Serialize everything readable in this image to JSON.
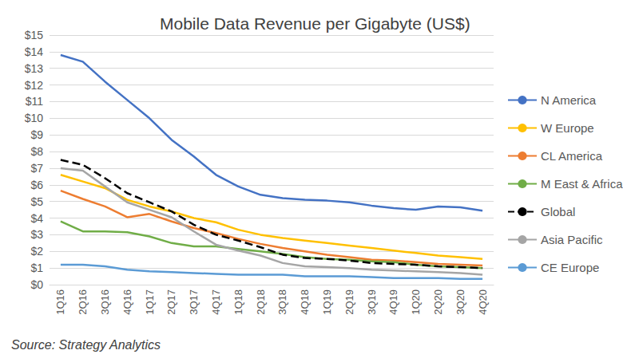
{
  "chart_data": {
    "type": "line",
    "title": "Mobile Data Revenue per Gigabyte (US$)",
    "annotation": "Source: Strategy Analytics",
    "categories": [
      "1Q16",
      "2Q16",
      "3Q16",
      "4Q16",
      "1Q17",
      "2Q17",
      "3Q17",
      "4Q17",
      "1Q18",
      "2Q18",
      "3Q18",
      "4Q18",
      "1Q19",
      "2Q19",
      "3Q19",
      "4Q19",
      "1Q20",
      "2Q20",
      "3Q20",
      "4Q20"
    ],
    "series": [
      {
        "name": "N America",
        "color": "#4472C4",
        "line_style": "solid",
        "values": [
          13.8,
          13.4,
          12.2,
          11.1,
          10.0,
          8.7,
          7.7,
          6.6,
          5.9,
          5.4,
          5.2,
          5.1,
          5.05,
          4.95,
          4.75,
          4.6,
          4.5,
          4.7,
          4.65,
          4.45
        ]
      },
      {
        "name": "W Europe",
        "color": "#FFC000",
        "line_style": "solid",
        "values": [
          6.6,
          6.2,
          5.8,
          5.1,
          4.7,
          4.4,
          4.0,
          3.75,
          3.3,
          3.0,
          2.8,
          2.65,
          2.5,
          2.35,
          2.2,
          2.05,
          1.9,
          1.75,
          1.65,
          1.55
        ]
      },
      {
        "name": "CL America",
        "color": "#ED7D31",
        "line_style": "solid",
        "values": [
          5.65,
          5.15,
          4.7,
          4.05,
          4.25,
          3.8,
          3.4,
          3.1,
          2.75,
          2.45,
          2.2,
          2.0,
          1.8,
          1.65,
          1.5,
          1.45,
          1.35,
          1.25,
          1.2,
          1.15
        ]
      },
      {
        "name": "M East & Africa",
        "color": "#70AD47",
        "line_style": "solid",
        "values": [
          3.8,
          3.2,
          3.2,
          3.15,
          2.9,
          2.5,
          2.3,
          2.3,
          2.15,
          2.0,
          1.85,
          1.65,
          1.55,
          1.5,
          1.4,
          1.35,
          1.2,
          1.1,
          1.05,
          1.0
        ]
      },
      {
        "name": "Global",
        "color": "#000000",
        "line_style": "dashed",
        "values": [
          7.5,
          7.2,
          6.4,
          5.5,
          4.95,
          4.4,
          3.6,
          3.0,
          2.65,
          2.25,
          1.8,
          1.6,
          1.55,
          1.45,
          1.3,
          1.25,
          1.2,
          1.1,
          1.05,
          1.0
        ]
      },
      {
        "name": "Asia Pacific",
        "color": "#A5A5A5",
        "line_style": "solid",
        "values": [
          7.0,
          6.85,
          5.9,
          4.95,
          4.5,
          4.05,
          3.2,
          2.4,
          2.05,
          1.75,
          1.3,
          1.1,
          1.05,
          1.0,
          0.9,
          0.85,
          0.8,
          0.75,
          0.7,
          0.6
        ]
      },
      {
        "name": "CE Europe",
        "color": "#5B9BD5",
        "line_style": "solid",
        "values": [
          1.2,
          1.2,
          1.1,
          0.9,
          0.8,
          0.75,
          0.7,
          0.65,
          0.6,
          0.6,
          0.6,
          0.5,
          0.5,
          0.5,
          0.45,
          0.4,
          0.4,
          0.4,
          0.35,
          0.35
        ]
      }
    ],
    "ylim": [
      0,
      15
    ],
    "yticks": [
      {
        "value": 0,
        "label": "$0"
      },
      {
        "value": 1,
        "label": "$1"
      },
      {
        "value": 2,
        "label": "$2"
      },
      {
        "value": 3,
        "label": "$3"
      },
      {
        "value": 4,
        "label": "$4"
      },
      {
        "value": 5,
        "label": "$5"
      },
      {
        "value": 6,
        "label": "$6"
      },
      {
        "value": 7,
        "label": "$7"
      },
      {
        "value": 8,
        "label": "$8"
      },
      {
        "value": 9,
        "label": "$9"
      },
      {
        "value": 10,
        "label": "$10"
      },
      {
        "value": 11,
        "label": "$11"
      },
      {
        "value": 12,
        "label": "$12"
      },
      {
        "value": 13,
        "label": "$13"
      },
      {
        "value": 14,
        "label": "$14"
      },
      {
        "value": 15,
        "label": "$15"
      }
    ],
    "grid": true,
    "legend": "right"
  }
}
